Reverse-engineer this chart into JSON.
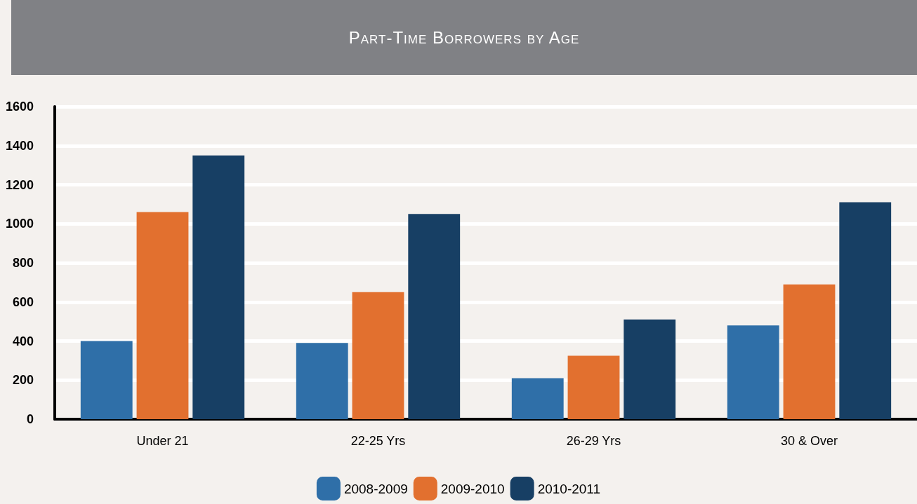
{
  "chart_data": {
    "type": "bar",
    "title": "Part-Time Borrowers by Age",
    "categories": [
      "Under 21",
      "22-25 Yrs",
      "26-29 Yrs",
      "30 & Over"
    ],
    "series": [
      {
        "name": "2008-2009",
        "color": "#2f6fa8",
        "values": [
          400,
          390,
          210,
          480
        ]
      },
      {
        "name": "2009-2010",
        "color": "#e2702f",
        "values": [
          1060,
          650,
          325,
          690
        ]
      },
      {
        "name": "2010-2011",
        "color": "#173f64",
        "values": [
          1350,
          1050,
          510,
          1110
        ]
      }
    ],
    "ylim": [
      0,
      1600
    ],
    "yticks": [
      0,
      200,
      400,
      600,
      800,
      1000,
      1200,
      1400,
      1600
    ],
    "grid": "y",
    "legend": "bottom"
  }
}
